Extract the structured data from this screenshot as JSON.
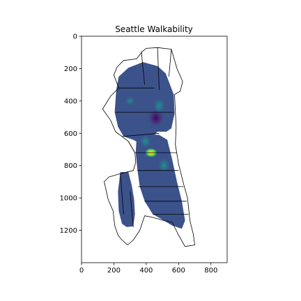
{
  "chart_data": {
    "type": "heatmap",
    "title": "Seattle Walkability",
    "xlabel": "",
    "ylabel": "",
    "xlim": [
      0,
      900
    ],
    "ylim": [
      1400,
      0
    ],
    "x_ticks": [
      0,
      200,
      400,
      600,
      800
    ],
    "y_ticks": [
      0,
      200,
      400,
      600,
      800,
      1000,
      1200
    ],
    "x_tick_labels": [
      "0",
      "200",
      "400",
      "600",
      "800"
    ],
    "y_tick_labels": [
      "0",
      "200",
      "400",
      "600",
      "800",
      "1000",
      "1200"
    ],
    "grid": false,
    "colormap": "viridis",
    "colors": {
      "low": "#3b528b",
      "mid": "#21908c",
      "high": "#fde725",
      "darkest": "#440154"
    },
    "map_outline": "city-boundary-with-neighborhoods",
    "walkability_regions": [
      {
        "name": "north-central",
        "polygon": [
          [
            230,
            250
          ],
          [
            290,
            195
          ],
          [
            380,
            160
          ],
          [
            470,
            185
          ],
          [
            520,
            230
          ],
          [
            570,
            360
          ],
          [
            575,
            480
          ],
          [
            555,
            570
          ],
          [
            525,
            590
          ],
          [
            470,
            590
          ],
          [
            430,
            630
          ],
          [
            390,
            680
          ],
          [
            320,
            640
          ],
          [
            260,
            620
          ],
          [
            225,
            560
          ],
          [
            205,
            470
          ],
          [
            215,
            330
          ]
        ]
      },
      {
        "name": "downtown-south",
        "polygon": [
          [
            340,
            630
          ],
          [
            400,
            605
          ],
          [
            480,
            610
          ],
          [
            530,
            640
          ],
          [
            560,
            760
          ],
          [
            590,
            900
          ],
          [
            620,
            1020
          ],
          [
            640,
            1140
          ],
          [
            620,
            1190
          ],
          [
            560,
            1170
          ],
          [
            510,
            1140
          ],
          [
            440,
            1100
          ],
          [
            390,
            1020
          ],
          [
            360,
            930
          ],
          [
            345,
            820
          ],
          [
            335,
            720
          ]
        ]
      },
      {
        "name": "west-seattle",
        "polygon": [
          [
            240,
            840
          ],
          [
            290,
            840
          ],
          [
            310,
            920
          ],
          [
            325,
            1010
          ],
          [
            330,
            1100
          ],
          [
            320,
            1175
          ],
          [
            280,
            1180
          ],
          [
            250,
            1160
          ],
          [
            230,
            1080
          ],
          [
            225,
            960
          ]
        ]
      }
    ],
    "hotspots": [
      {
        "x": 460,
        "y": 505,
        "rx": 55,
        "ry": 60,
        "value": 0.05
      },
      {
        "x": 430,
        "y": 720,
        "rx": 38,
        "ry": 28,
        "value": 1.0
      },
      {
        "x": 395,
        "y": 650,
        "rx": 35,
        "ry": 40,
        "value": 0.55
      },
      {
        "x": 480,
        "y": 430,
        "rx": 35,
        "ry": 45,
        "value": 0.5
      },
      {
        "x": 300,
        "y": 400,
        "rx": 30,
        "ry": 25,
        "value": 0.45
      },
      {
        "x": 510,
        "y": 800,
        "rx": 35,
        "ry": 45,
        "value": 0.45
      }
    ],
    "boundary_outline": [
      [
        260,
        150
      ],
      [
        340,
        140
      ],
      [
        375,
        95
      ],
      [
        400,
        75
      ],
      [
        470,
        70
      ],
      [
        555,
        80
      ],
      [
        590,
        200
      ],
      [
        625,
        280
      ],
      [
        610,
        340
      ],
      [
        575,
        360
      ],
      [
        585,
        560
      ],
      [
        580,
        670
      ],
      [
        600,
        790
      ],
      [
        630,
        910
      ],
      [
        655,
        1000
      ],
      [
        670,
        1140
      ],
      [
        690,
        1220
      ],
      [
        700,
        1290
      ],
      [
        640,
        1300
      ],
      [
        600,
        1230
      ],
      [
        560,
        1150
      ],
      [
        510,
        1140
      ],
      [
        440,
        1120
      ],
      [
        390,
        1110
      ],
      [
        360,
        1200
      ],
      [
        320,
        1260
      ],
      [
        285,
        1290
      ],
      [
        250,
        1260
      ],
      [
        225,
        1230
      ],
      [
        205,
        1170
      ],
      [
        195,
        1080
      ],
      [
        165,
        1010
      ],
      [
        140,
        900
      ],
      [
        170,
        870
      ],
      [
        240,
        850
      ],
      [
        320,
        830
      ],
      [
        335,
        780
      ],
      [
        330,
        720
      ],
      [
        290,
        650
      ],
      [
        250,
        620
      ],
      [
        210,
        590
      ],
      [
        180,
        520
      ],
      [
        130,
        450
      ],
      [
        180,
        370
      ],
      [
        230,
        320
      ],
      [
        200,
        240
      ],
      [
        220,
        190
      ]
    ],
    "boundary_fill_colors": [
      "#3b528b",
      "#31688e",
      "#21908c",
      "#35b779",
      "#90d743",
      "#fde725"
    ]
  }
}
